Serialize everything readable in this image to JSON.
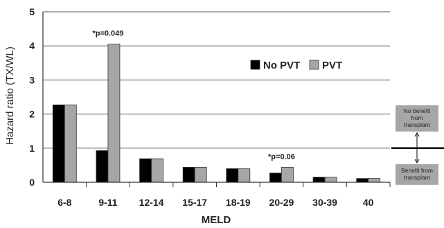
{
  "chart_data": {
    "type": "bar",
    "xlabel": "MELD",
    "ylabel": "Hazard ratio (TX/WL)",
    "ylim": [
      0,
      5
    ],
    "yticks": [
      0,
      1,
      2,
      3,
      4,
      5
    ],
    "categories": [
      "6-8",
      "9-11",
      "12-14",
      "15-17",
      "18-19",
      "20-29",
      "30-39",
      "40"
    ],
    "series": [
      {
        "name": "No PVT",
        "color": "#000000",
        "values": [
          2.27,
          0.93,
          0.69,
          0.44,
          0.4,
          0.27,
          0.15,
          0.11
        ]
      },
      {
        "name": "PVT",
        "color": "#a6a6a6",
        "values": [
          2.27,
          4.05,
          0.69,
          0.44,
          0.4,
          0.44,
          0.15,
          0.11
        ]
      }
    ],
    "legend": "center-right",
    "grid": "horizontal",
    "annotations": [
      {
        "category": "9-11",
        "text": "*p=0.049"
      },
      {
        "category": "20-29",
        "text": "*p=0.06"
      }
    ],
    "reference_line": {
      "value": 1
    },
    "side_labels": {
      "above": [
        "No benefit",
        "from",
        "transplant"
      ],
      "below": [
        "Benefit from",
        "transplant"
      ]
    }
  }
}
